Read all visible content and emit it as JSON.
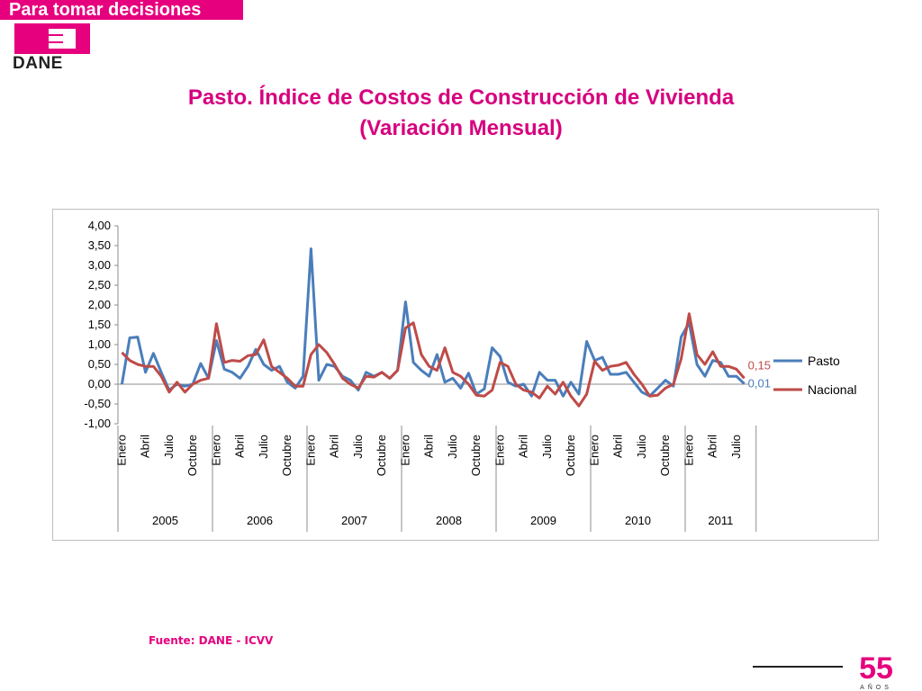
{
  "header": {
    "tagline": "Para tomar decisiones",
    "logo_text": "DANE"
  },
  "title": {
    "line1": "Pasto. Índice de Costos de Construcción de Vivienda",
    "line2": "(Variación Mensual)"
  },
  "footer": {
    "source": "Fuente: DANE - ICVV",
    "badge_number": "55",
    "badge_sub": "AÑOS"
  },
  "colors": {
    "brand": "#e6007e",
    "title": "#d6007e",
    "pasto": "#4a7ebb",
    "nacional": "#be4b48"
  },
  "chart_data": {
    "type": "line",
    "title": "",
    "xlabel": "",
    "ylabel": "",
    "ylim": [
      -1,
      4
    ],
    "y_ticks": [
      "4,00",
      "3,50",
      "3,00",
      "2,50",
      "2,00",
      "1,50",
      "1,00",
      "0,50",
      "0,00",
      "-0,50",
      "-1,00"
    ],
    "years": [
      "2005",
      "2006",
      "2007",
      "2008",
      "2009",
      "2010",
      "2011"
    ],
    "month_labels": [
      "Enero",
      "Abril",
      "Julio",
      "Octubre"
    ],
    "last_year_months": 9,
    "legend_position": "right",
    "series": [
      {
        "name": "Pasto",
        "end_label": "0,01",
        "color": "#4a7ebb",
        "values": [
          0.0,
          1.17,
          1.19,
          0.3,
          0.78,
          0.3,
          -0.15,
          0.0,
          -0.05,
          0.0,
          0.52,
          0.15,
          1.1,
          0.38,
          0.3,
          0.15,
          0.45,
          0.88,
          0.5,
          0.35,
          0.45,
          0.05,
          -0.1,
          0.2,
          3.42,
          0.1,
          0.5,
          0.45,
          0.2,
          0.1,
          -0.15,
          0.3,
          0.2,
          0.3,
          0.15,
          0.35,
          2.08,
          0.55,
          0.35,
          0.2,
          0.75,
          0.05,
          0.15,
          -0.1,
          0.28,
          -0.25,
          -0.12,
          0.92,
          0.7,
          0.05,
          -0.05,
          0.0,
          -0.3,
          0.3,
          0.1,
          0.1,
          -0.3,
          0.05,
          -0.25,
          1.08,
          0.6,
          0.68,
          0.25,
          0.25,
          0.3,
          0.05,
          -0.2,
          -0.3,
          -0.1,
          0.1,
          -0.05,
          1.2,
          1.55,
          0.5,
          0.2,
          0.6,
          0.55,
          0.2,
          0.2,
          0.01
        ]
      },
      {
        "name": "Nacional",
        "end_label": "0,15",
        "color": "#be4b48",
        "values": [
          0.8,
          0.6,
          0.5,
          0.45,
          0.45,
          0.2,
          -0.2,
          0.05,
          -0.2,
          0.0,
          0.1,
          0.15,
          1.53,
          0.55,
          0.6,
          0.58,
          0.72,
          0.75,
          1.12,
          0.45,
          0.3,
          0.15,
          -0.05,
          -0.05,
          0.75,
          1.0,
          0.8,
          0.5,
          0.15,
          0.0,
          -0.1,
          0.2,
          0.18,
          0.3,
          0.15,
          0.35,
          1.42,
          1.55,
          0.75,
          0.45,
          0.35,
          0.92,
          0.3,
          0.2,
          0.0,
          -0.28,
          -0.3,
          -0.15,
          0.55,
          0.45,
          0.0,
          -0.15,
          -0.2,
          -0.35,
          -0.05,
          -0.25,
          0.05,
          -0.3,
          -0.55,
          -0.25,
          0.58,
          0.35,
          0.45,
          0.48,
          0.55,
          0.25,
          0.0,
          -0.3,
          -0.28,
          -0.1,
          0.0,
          0.65,
          1.78,
          0.75,
          0.5,
          0.82,
          0.45,
          0.45,
          0.38,
          0.15
        ]
      }
    ]
  }
}
